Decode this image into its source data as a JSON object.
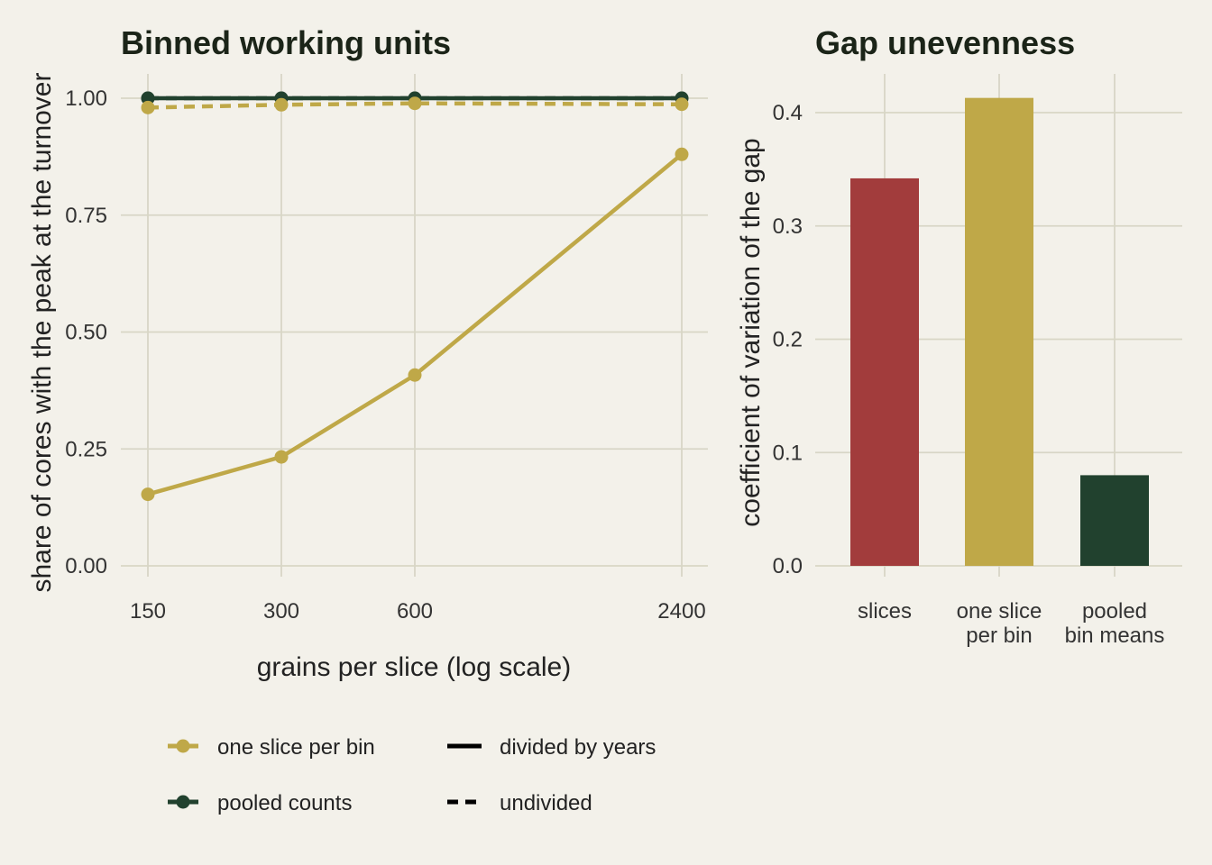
{
  "colors": {
    "background": "#f3f1ea",
    "grid": "#d8d6c6",
    "one_slice_per_bin": "#bfa848",
    "pooled_counts": "#21412e",
    "slices": "#a23c3c",
    "legend_line": "#000000"
  },
  "chart_data": [
    {
      "type": "line",
      "title": "Binned working units",
      "xlabel": "grains per slice (log scale)",
      "ylabel": "share of cores with the peak at the turnover",
      "x_scale": "log",
      "x": [
        150,
        300,
        600,
        2400
      ],
      "x_tick_labels": [
        "150",
        "300",
        "600",
        "2400"
      ],
      "ylim": [
        0,
        1
      ],
      "y_ticks": [
        0,
        0.25,
        0.5,
        0.75,
        1
      ],
      "y_tick_labels": [
        "0.00",
        "0.25",
        "0.50",
        "0.75",
        "1.00"
      ],
      "grid": true,
      "legend_position": "bottom",
      "series": [
        {
          "name": "pooled counts",
          "linetype": "divided by years",
          "color": "#21412e",
          "values": [
            1.0,
            1.0,
            1.0,
            1.0
          ]
        },
        {
          "name": "pooled counts",
          "linetype": "undivided",
          "color": "#21412e",
          "values": [
            1.0,
            1.0,
            1.0,
            1.0
          ]
        },
        {
          "name": "one slice per bin",
          "linetype": "divided by years",
          "color": "#bfa848",
          "values": [
            0.153,
            0.233,
            0.408,
            0.88
          ]
        },
        {
          "name": "one slice per bin",
          "linetype": "undivided",
          "color": "#bfa848",
          "values": [
            0.98,
            0.986,
            0.989,
            0.987
          ]
        }
      ],
      "legend": {
        "colour_entries": [
          {
            "label": "one slice per bin",
            "color": "#bfa848"
          },
          {
            "label": "pooled counts",
            "color": "#21412e"
          }
        ],
        "linetype_entries": [
          {
            "label": "divided by years",
            "dash": "solid"
          },
          {
            "label": "undivided",
            "dash": "dashed"
          }
        ]
      }
    },
    {
      "type": "bar",
      "title": "Gap unevenness",
      "xlabel": "",
      "ylabel": "coefficient of variation of the gap",
      "categories": [
        [
          "slices"
        ],
        [
          "one slice",
          "per bin"
        ],
        [
          "pooled",
          "bin means"
        ]
      ],
      "values": [
        0.342,
        0.413,
        0.08
      ],
      "colors": [
        "#a23c3c",
        "#bfa848",
        "#21412e"
      ],
      "ylim": [
        0,
        0.4
      ],
      "y_ticks": [
        0,
        0.1,
        0.2,
        0.3,
        0.4
      ],
      "y_tick_labels": [
        "0.0",
        "0.1",
        "0.2",
        "0.3",
        "0.4"
      ],
      "grid": true
    }
  ]
}
